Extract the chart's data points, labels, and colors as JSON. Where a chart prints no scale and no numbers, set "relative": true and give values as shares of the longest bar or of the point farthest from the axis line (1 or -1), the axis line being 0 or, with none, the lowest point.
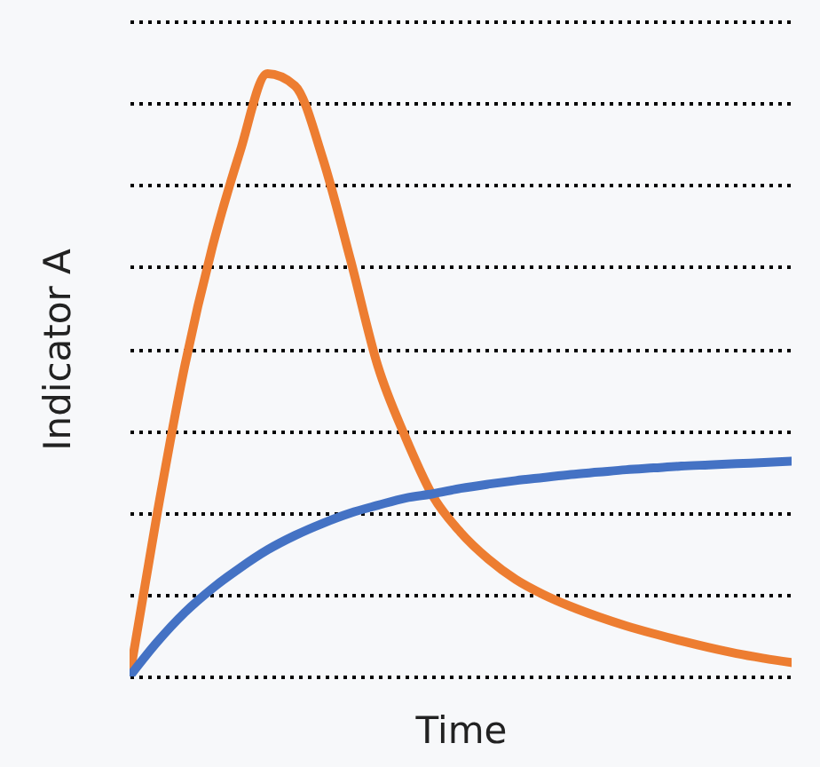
{
  "chart_data": {
    "type": "line",
    "xlabel": "Time",
    "ylabel": "Indicator A",
    "relative": true,
    "grid": "y",
    "tick_labels": false,
    "line_style": "solid",
    "marker": "none",
    "categories": [
      null,
      null,
      null,
      null,
      null,
      null,
      null,
      null,
      null,
      null,
      null,
      null,
      null,
      null,
      null,
      null,
      null,
      null,
      null,
      null,
      null,
      null,
      null,
      null,
      null
    ],
    "series": [
      {
        "color": "#ed7d31",
        "values": [
          0,
          0.27,
          0.515,
          0.712,
          0.87,
          1,
          0.98,
          0.86,
          0.693,
          0.515,
          0.397,
          0.299,
          0.239,
          0.195,
          0.161,
          0.136,
          0.116,
          0.099,
          0.084,
          0.071,
          0.059,
          0.048,
          0.038,
          0.03,
          0.023
        ]
      },
      {
        "color": "#4472c4",
        "values": [
          0,
          0.057,
          0.106,
          0.146,
          0.18,
          0.21,
          0.234,
          0.254,
          0.271,
          0.284,
          0.296,
          0.303,
          0.312,
          0.319,
          0.325,
          0.33,
          0.335,
          0.339,
          0.343,
          0.346,
          0.349,
          0.351,
          0.353,
          0.355,
          0.357
        ]
      }
    ]
  }
}
